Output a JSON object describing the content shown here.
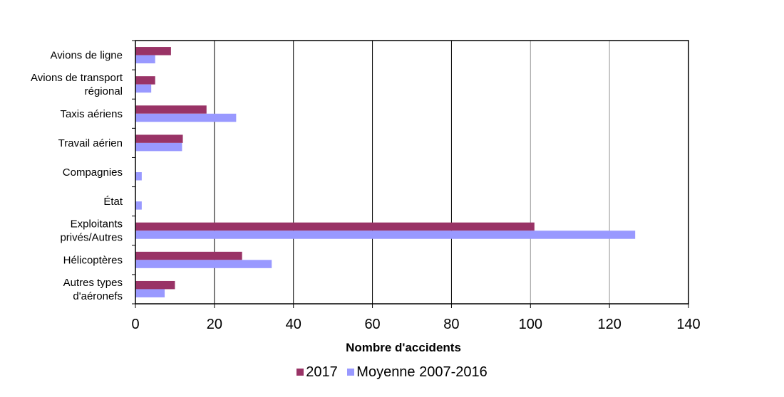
{
  "chart_data": {
    "type": "bar",
    "orientation": "horizontal",
    "categories": [
      [
        "Avions de ligne"
      ],
      [
        "Avions de transport",
        "régional"
      ],
      [
        "Taxis aériens"
      ],
      [
        "Travail aérien"
      ],
      [
        "Compagnies"
      ],
      [
        "État"
      ],
      [
        "Exploitants",
        "privés/Autres"
      ],
      [
        "Hélicoptères"
      ],
      [
        "Autres types",
        "d'aéronefs"
      ]
    ],
    "series": [
      {
        "name": "2017",
        "color": "#993366",
        "values": [
          9,
          5,
          18,
          12,
          0,
          0,
          101,
          27,
          10
        ]
      },
      {
        "name": "Moyenne 2007-2016",
        "color": "#9999ff",
        "values": [
          5,
          4,
          25.5,
          11.8,
          1.6,
          1.6,
          126.5,
          34.5,
          7.4
        ]
      }
    ],
    "xlabel": "Nombre d'accidents",
    "xlim": [
      0,
      140
    ],
    "xticks": [
      "0",
      "20",
      "40",
      "60",
      "80",
      "100",
      "120",
      "140"
    ],
    "grid": "vertical",
    "legend": "bottom"
  }
}
